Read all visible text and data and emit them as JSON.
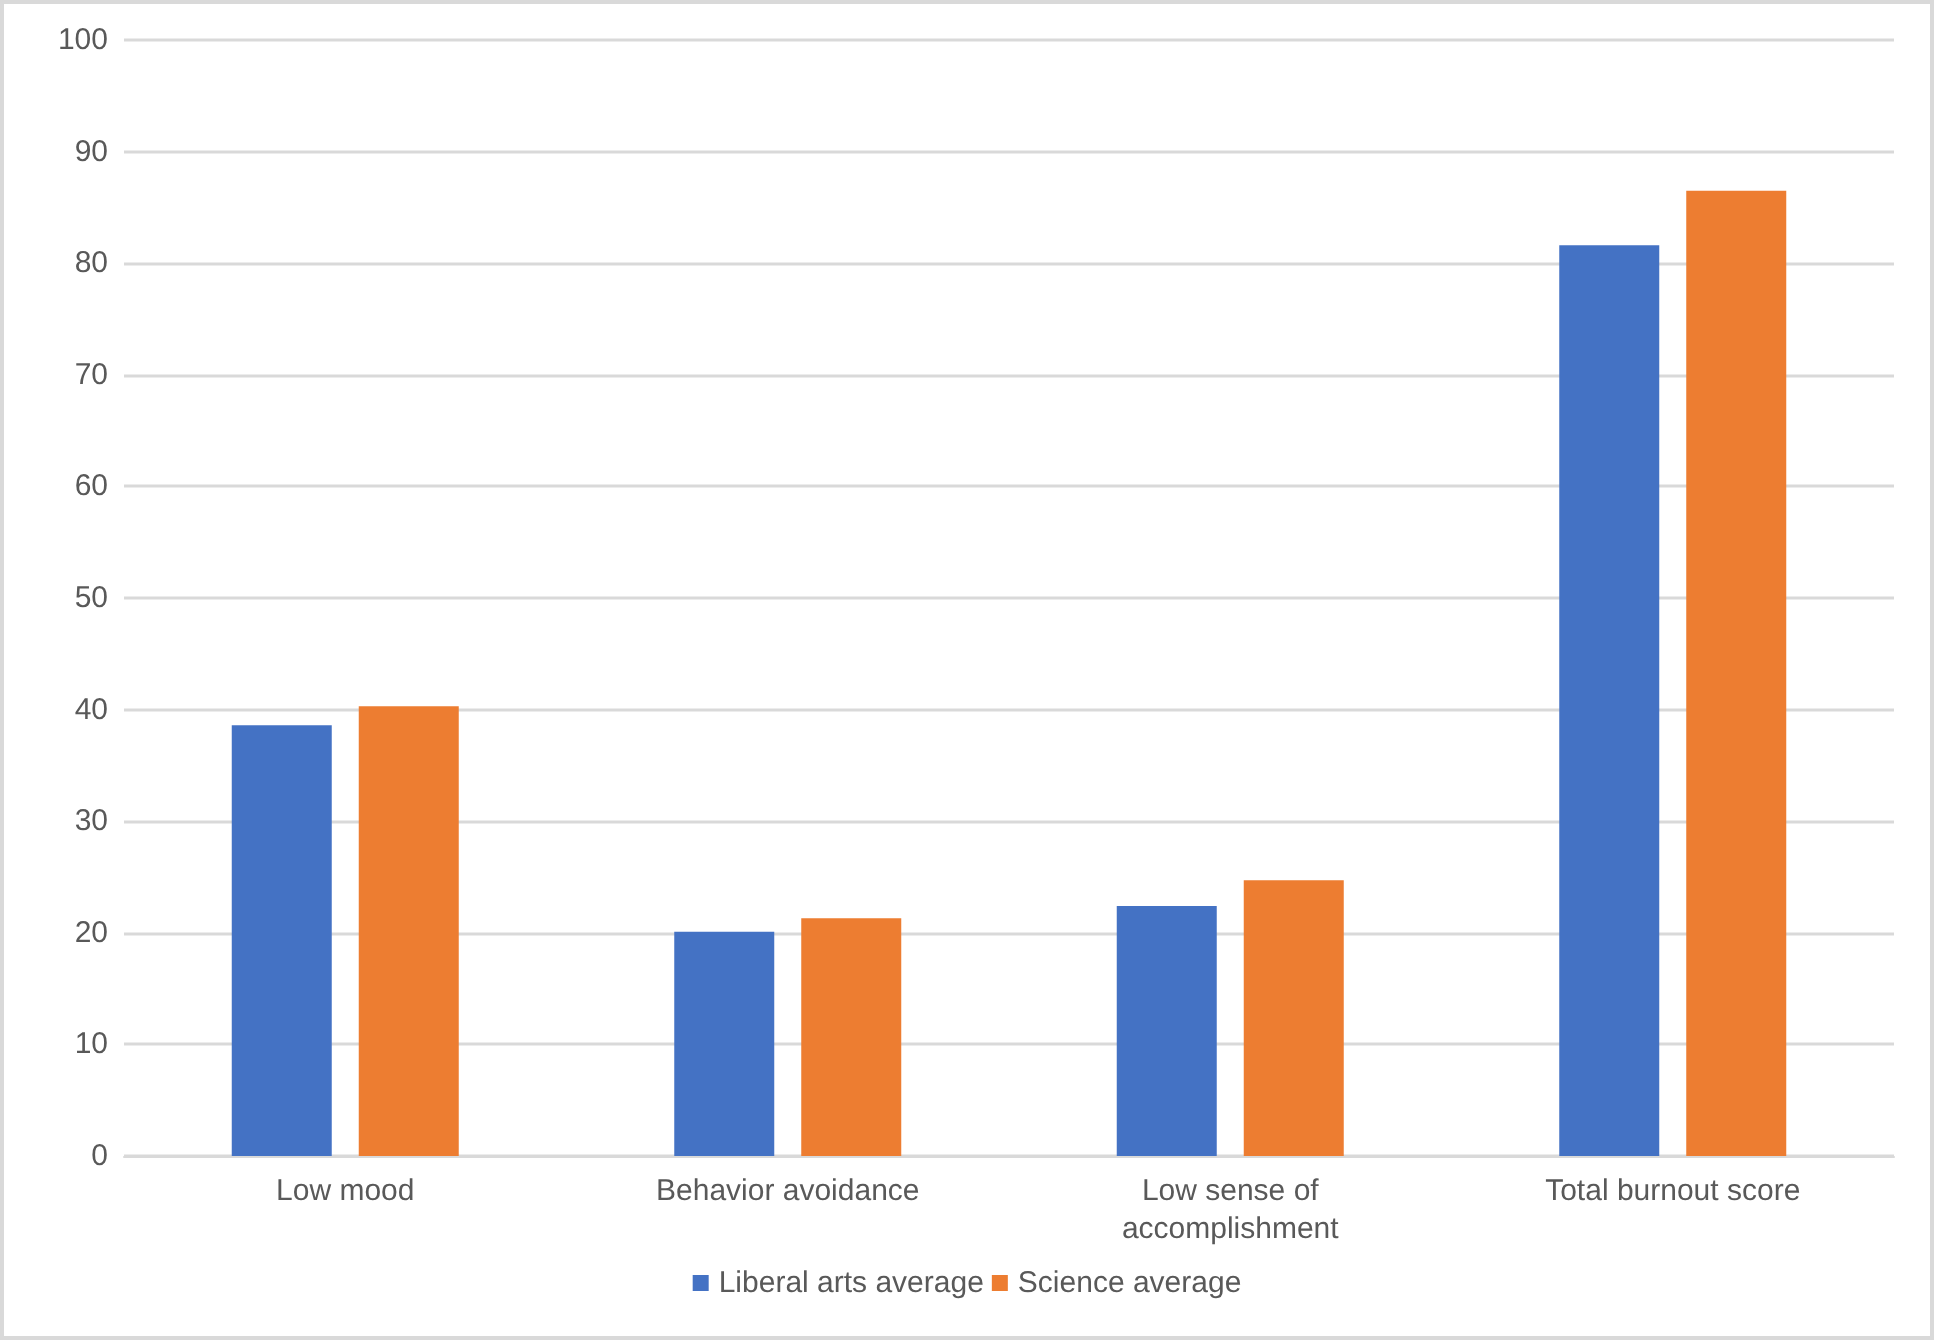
{
  "chart_data": {
    "type": "bar",
    "categories": [
      "Low mood",
      "Behavior avoidance",
      "Low sense of\naccomplishment",
      "Total burnout score"
    ],
    "series": [
      {
        "name": "Liberal arts average",
        "color": "#4472c4",
        "values": [
          38.6,
          20.1,
          22.4,
          81.6
        ]
      },
      {
        "name": "Science average",
        "color": "#ed7d31",
        "values": [
          40.3,
          21.3,
          24.7,
          86.5
        ]
      }
    ],
    "ylim": [
      0,
      100
    ],
    "yticks": [
      0,
      10,
      20,
      30,
      40,
      50,
      60,
      70,
      80,
      90,
      100
    ],
    "grid": "y",
    "legend": "bottom"
  }
}
